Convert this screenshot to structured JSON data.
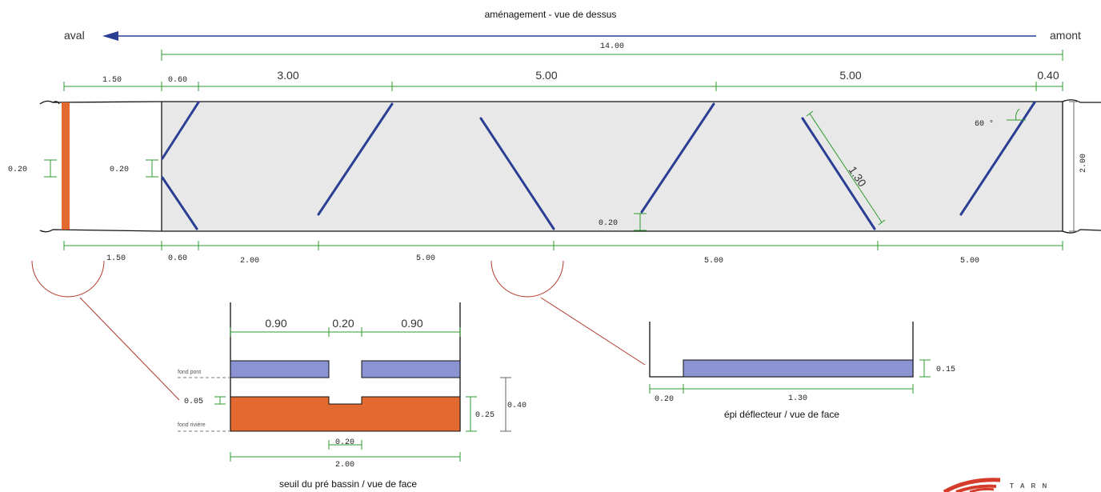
{
  "titles": {
    "top": "aménagement - vue de dessus",
    "weir": "seuil du pré bassin / vue de face",
    "deflector": "épi déflecteur / vue de face"
  },
  "flow": {
    "aval": "aval",
    "amont": "amont"
  },
  "plan_top_dims": {
    "total": "14.00",
    "d1": "1.50",
    "d2": "0.60",
    "d3": "3.00",
    "d4": "5.00",
    "d5": "5.00",
    "d6": "0.40"
  },
  "plan_bottom_dims": {
    "d1": "1.50",
    "d2": "0.60",
    "d3": "2.00",
    "d4": "5.00",
    "d5": "5.00",
    "d6": "5.00"
  },
  "plan_other": {
    "gap_left": "0.20",
    "gap_entry": "0.20",
    "gap_mid": "0.20",
    "width": "2.00",
    "angle": "60 °",
    "deflector_len": "1.30"
  },
  "weir": {
    "top_left": "0.90",
    "top_mid": "0.20",
    "top_right": "0.90",
    "fond_pont": "fond pont",
    "fond_riviere": "fond rivière",
    "notch_depth": "0.05",
    "height_sill": "0.25",
    "height_total": "0.40",
    "notch_width": "0.20",
    "width_total": "2.00"
  },
  "deflector": {
    "height": "0.15",
    "gap": "0.20",
    "length": "1.30"
  },
  "logo": {
    "text": "T A R N"
  },
  "colors": {
    "deck": "#e8e8e8",
    "deflector_blue": "#2a3f93",
    "weir_orange": "#e2692f",
    "fill_blue": "#8c93d2",
    "dim_green": "#2f9b2f",
    "leader_red": "#b03a2e"
  }
}
